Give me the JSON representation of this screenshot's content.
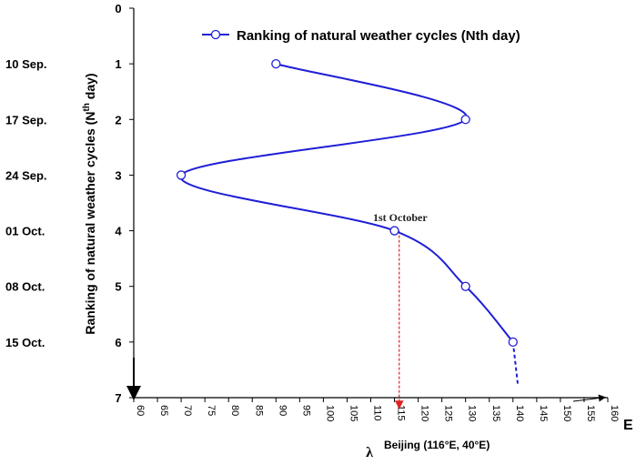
{
  "chart_data": {
    "type": "line",
    "title": "",
    "xlabel": "λ",
    "x_unit_label": "E",
    "ylabel": "Ranking of natural weather cycles (N",
    "ylabel_sup": "th",
    "ylabel_tail": " day)",
    "xlim": [
      60,
      160
    ],
    "ylim": [
      0,
      7
    ],
    "y_inverted": true,
    "x_ticks": [
      60,
      65,
      70,
      75,
      80,
      85,
      90,
      95,
      100,
      105,
      110,
      115,
      120,
      125,
      130,
      135,
      140,
      145,
      150,
      155,
      160
    ],
    "y_ticks": [
      0,
      1,
      2,
      3,
      4,
      5,
      6,
      7
    ],
    "date_labels": [
      {
        "y": 1,
        "text": "10 Sep."
      },
      {
        "y": 2,
        "text": "17 Sep."
      },
      {
        "y": 3,
        "text": "24 Sep."
      },
      {
        "y": 4,
        "text": "01 Oct."
      },
      {
        "y": 5,
        "text": "08 Oct."
      },
      {
        "y": 6,
        "text": "15 Oct."
      }
    ],
    "series": [
      {
        "name": "Ranking of natural weather cycles (Nth day)",
        "color": "#1f1fd6",
        "x": [
          90,
          130,
          70,
          115,
          130,
          140
        ],
        "y": [
          1,
          2,
          3,
          4,
          5,
          6
        ],
        "dashed_extension": {
          "x": [
            140,
            141
          ],
          "y": [
            6,
            6.75
          ]
        }
      }
    ],
    "legend": {
      "position": "top-right",
      "text": "Ranking of natural weather cycles (Nth day)"
    },
    "annotations": [
      {
        "text": "1st October",
        "x": 115,
        "y": 4
      },
      {
        "text": "Beijing (116°E,  40°E)",
        "x": 116
      }
    ],
    "reference_line": {
      "x": 116,
      "y_from": 4,
      "y_to": 7,
      "color": "#e02020"
    }
  }
}
